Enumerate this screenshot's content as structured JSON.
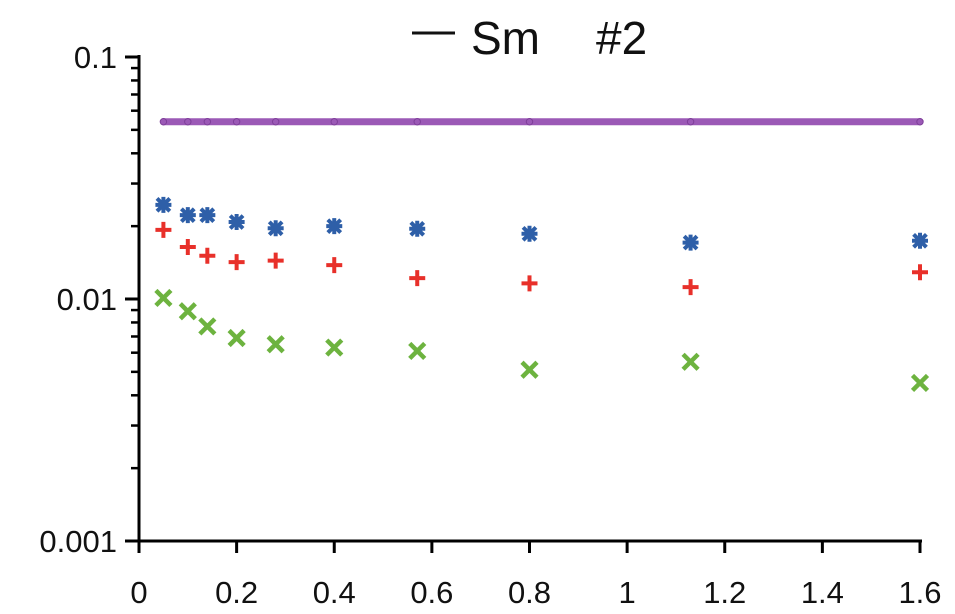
{
  "chart_data": {
    "type": "scatter",
    "xlim": [
      0,
      1.6
    ],
    "ylim": [
      0.001,
      0.1
    ],
    "yscale": "log",
    "xticks": [
      "0",
      "0.2",
      "0.4",
      "0.6",
      "0.8",
      "1",
      "1.2",
      "1.4",
      "1.6"
    ],
    "yticks": [
      "0.001",
      "0.01",
      "0.1"
    ],
    "grid": false,
    "legend": {
      "position": "top",
      "label": "Sm",
      "annotation": "#2"
    },
    "series": [
      {
        "name": "Sm",
        "marker": "line",
        "color": "#9b59b6",
        "x": [
          0.05,
          0.1,
          0.14,
          0.2,
          0.28,
          0.4,
          0.57,
          0.8,
          1.13,
          1.6
        ],
        "y": [
          0.054,
          0.054,
          0.054,
          0.054,
          0.054,
          0.054,
          0.054,
          0.054,
          0.054,
          0.054
        ]
      },
      {
        "marker": "star",
        "color": "#2e5fa8",
        "x": [
          0.05,
          0.1,
          0.14,
          0.2,
          0.28,
          0.4,
          0.57,
          0.8,
          1.13,
          1.6
        ],
        "y": [
          0.0245,
          0.0222,
          0.0222,
          0.0208,
          0.0196,
          0.02,
          0.0195,
          0.0186,
          0.0171,
          0.0174
        ]
      },
      {
        "marker": "plus",
        "color": "#e8302a",
        "x": [
          0.05,
          0.1,
          0.14,
          0.2,
          0.28,
          0.4,
          0.57,
          0.8,
          1.13,
          1.6
        ],
        "y": [
          0.0193,
          0.0164,
          0.0151,
          0.0142,
          0.0144,
          0.0138,
          0.0122,
          0.0116,
          0.0112,
          0.0129
        ]
      },
      {
        "marker": "x",
        "color": "#6db33f",
        "x": [
          0.05,
          0.1,
          0.14,
          0.2,
          0.28,
          0.4,
          0.57,
          0.8,
          1.13,
          1.6
        ],
        "y": [
          0.0101,
          0.0089,
          0.0077,
          0.0069,
          0.0065,
          0.0063,
          0.0061,
          0.0051,
          0.0055,
          0.0045
        ]
      }
    ]
  }
}
